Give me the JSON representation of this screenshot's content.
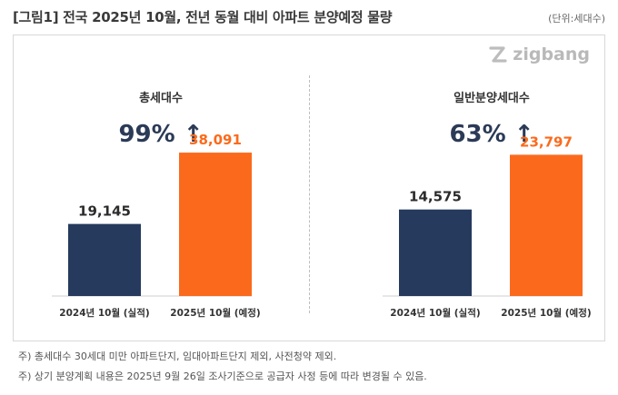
{
  "title": "[그림1] 전국 2025년 10월, 전년 동월 대비 아파트 분양예정 물량",
  "unit": "(단위:세대수)",
  "logo": {
    "text": "zigbang",
    "icon": "zigbang-logo-icon"
  },
  "colors": {
    "prev": "#263a5e",
    "plan": "#fb6a1c",
    "axis": "#cfcfcf"
  },
  "chart_data": [
    {
      "type": "bar",
      "title": "총세대수",
      "change_label": "99% ↑",
      "categories": [
        "2024년 10월 (실적)",
        "2025년 10월 (예정)"
      ],
      "values": [
        19145,
        38091
      ],
      "value_labels": [
        "19,145",
        "38,091"
      ],
      "ylim": [
        0,
        41000
      ]
    },
    {
      "type": "bar",
      "title": "일반분양세대수",
      "change_label": "63% ↑",
      "categories": [
        "2024년 10월 (실적)",
        "2025년 10월 (예정)"
      ],
      "values": [
        14575,
        23797
      ],
      "value_labels": [
        "14,575",
        "23,797"
      ],
      "ylim": [
        0,
        26000
      ]
    }
  ],
  "footnotes": [
    "주) 총세대수 30세대 미만 아파트단지, 임대아파트단지 제외, 사전청약 제외.",
    "주) 상기 분양계획 내용은 2025년 9월 26일 조사기준으로 공급자 사정 등에 따라 변경될 수 있음."
  ]
}
